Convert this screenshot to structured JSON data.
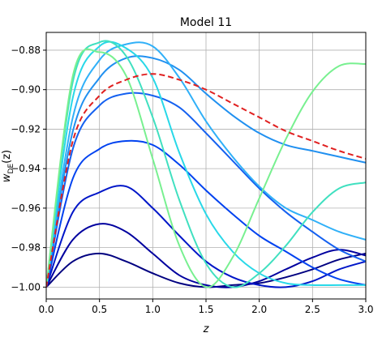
{
  "chart_data": {
    "type": "line",
    "title": "Model 11",
    "xlabel": "z",
    "ylabel": "w_DE(z)",
    "ylabel_main": "w",
    "ylabel_sub": "DE",
    "ylabel_arg": "(z)",
    "xlim": [
      0.0,
      3.0
    ],
    "ylim": [
      -1.006,
      -0.871
    ],
    "grid": true,
    "xticks": [
      0.0,
      0.5,
      1.0,
      1.5,
      2.0,
      2.5,
      3.0
    ],
    "xtick_labels": [
      "0.0",
      "0.5",
      "1.0",
      "1.5",
      "2.0",
      "2.5",
      "3.0"
    ],
    "yticks": [
      -1.0,
      -0.98,
      -0.96,
      -0.94,
      -0.92,
      -0.9,
      -0.88
    ],
    "ytick_labels": [
      "−1.00",
      "−0.98",
      "−0.96",
      "−0.94",
      "−0.92",
      "−0.90",
      "−0.88"
    ],
    "x": [
      0.0,
      0.25,
      0.5,
      0.75,
      1.0,
      1.25,
      1.5,
      1.75,
      2.0,
      2.25,
      2.5,
      2.75,
      3.0
    ],
    "series": [
      {
        "color": "#000080",
        "dashed": false,
        "values": [
          -1.0,
          -0.987,
          -0.983,
          -0.987,
          -0.993,
          -0.998,
          -1.0,
          -0.999,
          -0.998,
          -0.995,
          -0.991,
          -0.986,
          -0.983
        ]
      },
      {
        "color": "#00009f",
        "dashed": false,
        "values": [
          -1.0,
          -0.976,
          -0.968,
          -0.972,
          -0.983,
          -0.994,
          -0.999,
          -1.0,
          -0.997,
          -0.991,
          -0.985,
          -0.981,
          -0.984
        ]
      },
      {
        "color": "#0016c8",
        "dashed": false,
        "values": [
          -1.0,
          -0.962,
          -0.952,
          -0.949,
          -0.96,
          -0.974,
          -0.987,
          -0.995,
          -0.999,
          -1.0,
          -0.997,
          -0.991,
          -0.987
        ]
      },
      {
        "color": "#0042f0",
        "dashed": false,
        "values": [
          -1.0,
          -0.945,
          -0.93,
          -0.926,
          -0.928,
          -0.938,
          -0.951,
          -0.963,
          -0.974,
          -0.982,
          -0.99,
          -0.996,
          -0.999
        ]
      },
      {
        "color": "#1460f0",
        "dashed": false,
        "values": [
          -1.0,
          -0.93,
          -0.908,
          -0.902,
          -0.903,
          -0.909,
          -0.922,
          -0.936,
          -0.95,
          -0.962,
          -0.972,
          -0.981,
          -0.987
        ]
      },
      {
        "color": "#2090f0",
        "dashed": false,
        "values": [
          -1.0,
          -0.921,
          -0.894,
          -0.884,
          -0.884,
          -0.89,
          -0.902,
          -0.913,
          -0.922,
          -0.928,
          -0.931,
          -0.934,
          -0.937
        ]
      },
      {
        "color": "#30b0f8",
        "dashed": false,
        "values": [
          -1.0,
          -0.914,
          -0.885,
          -0.877,
          -0.878,
          -0.894,
          -0.916,
          -0.934,
          -0.949,
          -0.96,
          -0.966,
          -0.972,
          -0.976
        ]
      },
      {
        "color": "#28d8e8",
        "dashed": false,
        "values": [
          -1.0,
          -0.904,
          -0.878,
          -0.879,
          -0.894,
          -0.932,
          -0.963,
          -0.982,
          -0.993,
          -0.998,
          -0.999,
          -0.999,
          -0.999
        ]
      },
      {
        "color": "#40e0c0",
        "dashed": false,
        "values": [
          -1.0,
          -0.896,
          -0.876,
          -0.883,
          -0.914,
          -0.956,
          -0.988,
          -1.0,
          -0.993,
          -0.979,
          -0.962,
          -0.95,
          -0.947
        ]
      },
      {
        "color": "#78f090",
        "dashed": false,
        "values": [
          -1.0,
          -0.893,
          -0.881,
          -0.893,
          -0.935,
          -0.979,
          -1.0,
          -0.985,
          -0.955,
          -0.925,
          -0.901,
          -0.888,
          -0.887
        ]
      },
      {
        "color": "#e02020",
        "dashed": true,
        "values": [
          -1.0,
          -0.926,
          -0.903,
          -0.895,
          -0.892,
          -0.895,
          -0.9,
          -0.907,
          -0.914,
          -0.921,
          -0.926,
          -0.931,
          -0.935
        ]
      }
    ]
  }
}
